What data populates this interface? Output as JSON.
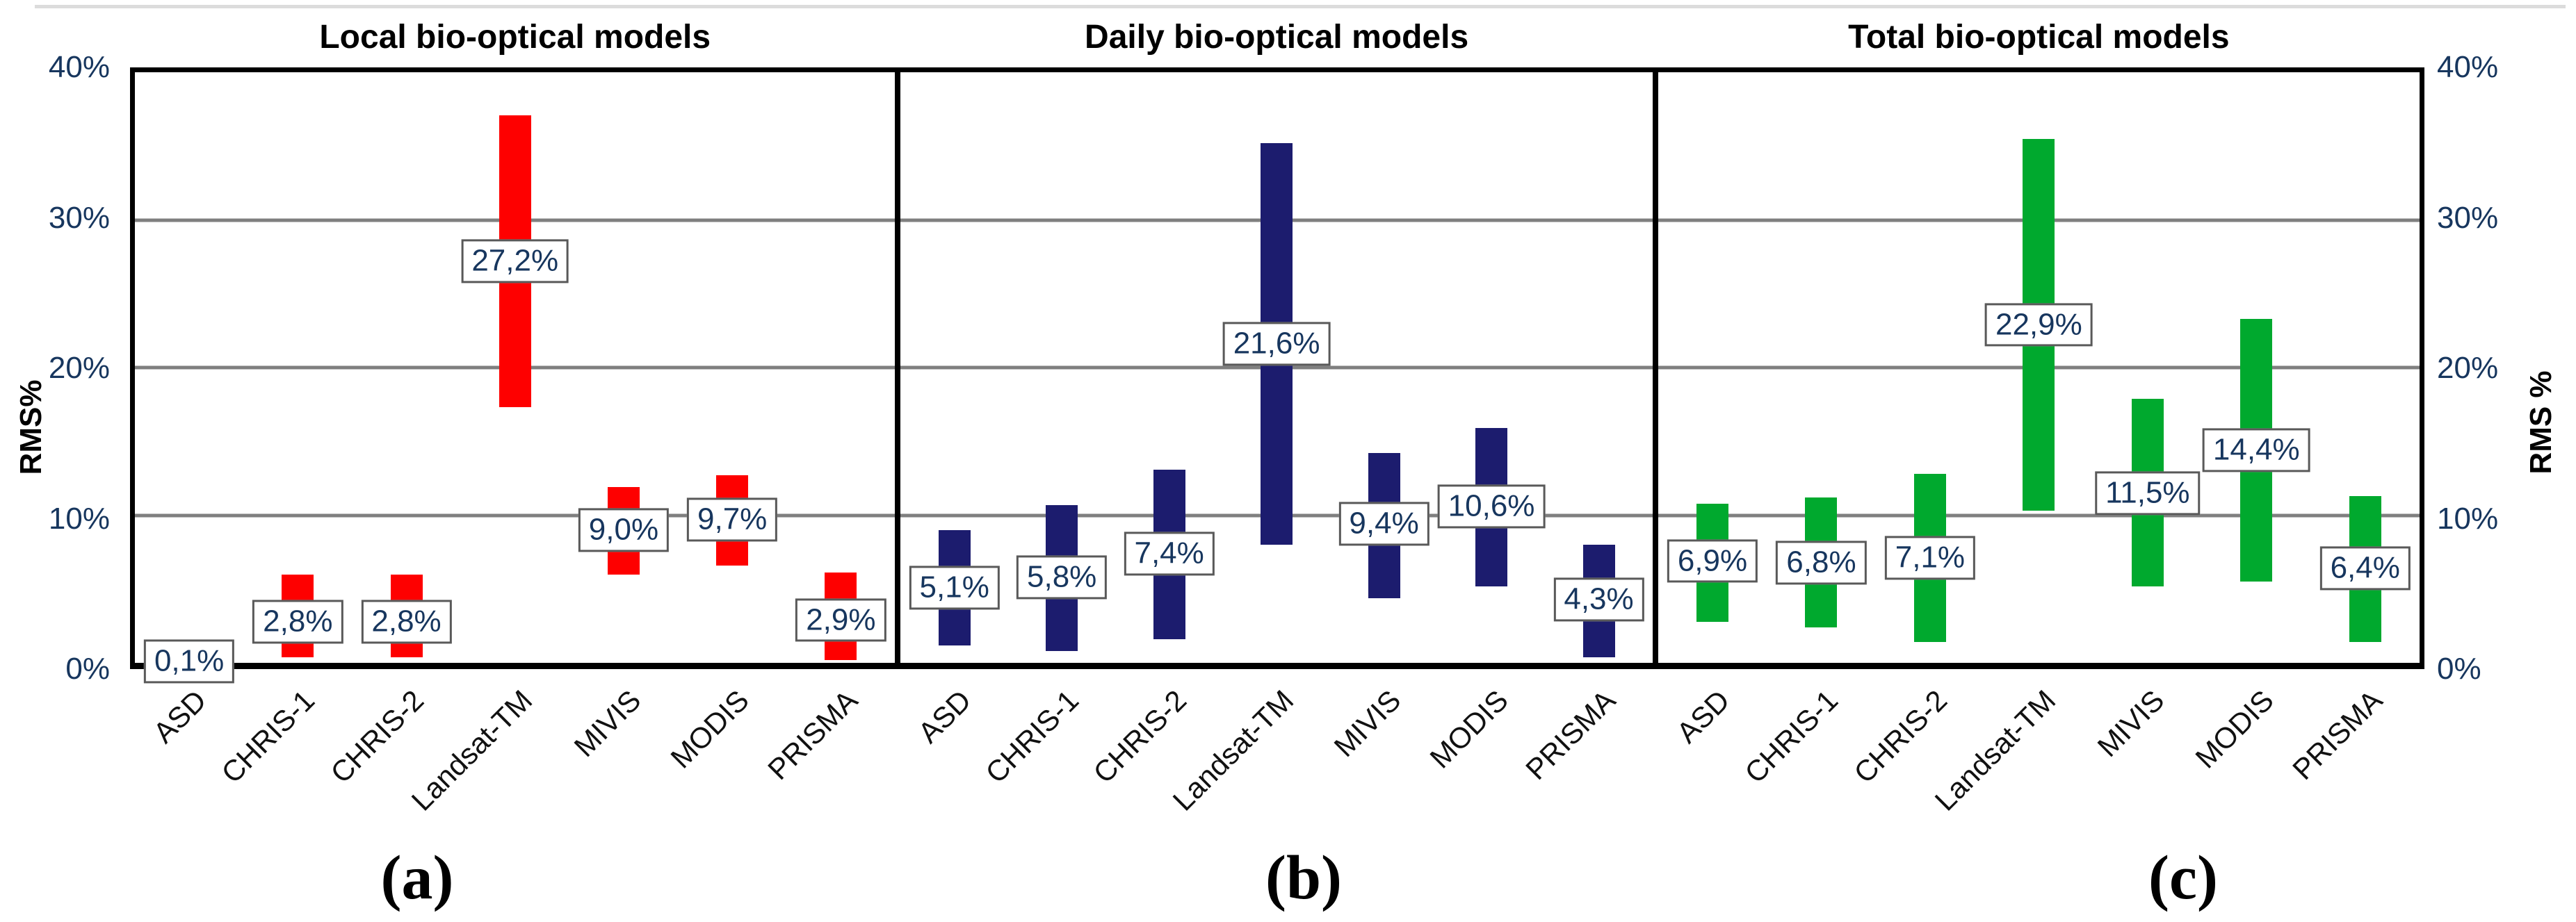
{
  "figure": {
    "left_axis_label": "RMS%",
    "right_axis_label": "RMS %",
    "yticks": [
      {
        "label": "40%",
        "value": 40
      },
      {
        "label": "30%",
        "value": 30
      },
      {
        "label": "20%",
        "value": 20
      },
      {
        "label": "10%",
        "value": 10
      },
      {
        "label": "0%",
        "value": 0
      }
    ],
    "captions": [
      "(a)",
      "(b)",
      "(c)"
    ],
    "grid_color": "#7f7f7f",
    "tick_text_color": "#17365E",
    "label_text_color": "#17365E"
  },
  "chart_data": [
    {
      "type": "bar",
      "variant": "floating-range-bars",
      "title": "Local bio-optical models",
      "caption": "(a)",
      "color": "#FE0000",
      "ylim": [
        0,
        40
      ],
      "grid": true,
      "categories": [
        "ASD",
        "CHRIS-1",
        "CHRIS-2",
        "Landsat-TM",
        "MIVIS",
        "MODIS",
        "PRISMA"
      ],
      "bars": [
        {
          "category": "ASD",
          "label": "0,1%",
          "value": 0.1,
          "range_min": 0.0,
          "range_max": 0.2
        },
        {
          "category": "CHRIS-1",
          "label": "2,8%",
          "value": 2.8,
          "range_min": 0.4,
          "range_max": 6.0
        },
        {
          "category": "CHRIS-2",
          "label": "2,8%",
          "value": 2.8,
          "range_min": 0.4,
          "range_max": 6.0
        },
        {
          "category": "Landsat-TM",
          "label": "27,2%",
          "value": 27.2,
          "range_min": 17.3,
          "range_max": 37.1
        },
        {
          "category": "MIVIS",
          "label": "9,0%",
          "value": 9.0,
          "range_min": 6.0,
          "range_max": 11.9
        },
        {
          "category": "MODIS",
          "label": "9,7%",
          "value": 9.7,
          "range_min": 6.6,
          "range_max": 12.7
        },
        {
          "category": "PRISMA",
          "label": "2,9%",
          "value": 2.9,
          "range_min": 0.2,
          "range_max": 6.1
        }
      ]
    },
    {
      "type": "bar",
      "variant": "floating-range-bars",
      "title": "Daily bio-optical models",
      "caption": "(b)",
      "color": "#1C1C6E",
      "ylim": [
        0,
        40
      ],
      "grid": true,
      "categories": [
        "ASD",
        "CHRIS-1",
        "CHRIS-2",
        "Landsat-TM",
        "MIVIS",
        "MODIS",
        "PRISMA"
      ],
      "bars": [
        {
          "category": "ASD",
          "label": "5,1%",
          "value": 5.1,
          "range_min": 1.2,
          "range_max": 9.0
        },
        {
          "category": "CHRIS-1",
          "label": "5,8%",
          "value": 5.8,
          "range_min": 0.8,
          "range_max": 10.7
        },
        {
          "category": "CHRIS-2",
          "label": "7,4%",
          "value": 7.4,
          "range_min": 1.6,
          "range_max": 13.1
        },
        {
          "category": "Landsat-TM",
          "label": "21,6%",
          "value": 21.6,
          "range_min": 8.0,
          "range_max": 35.2
        },
        {
          "category": "MIVIS",
          "label": "9,4%",
          "value": 9.4,
          "range_min": 4.4,
          "range_max": 14.2
        },
        {
          "category": "MODIS",
          "label": "10,6%",
          "value": 10.6,
          "range_min": 5.2,
          "range_max": 15.9
        },
        {
          "category": "PRISMA",
          "label": "4,3%",
          "value": 4.3,
          "range_min": 0.4,
          "range_max": 8.0
        }
      ]
    },
    {
      "type": "bar",
      "variant": "floating-range-bars",
      "title": "Total bio-optical models",
      "caption": "(c)",
      "color": "#00A92E",
      "ylim": [
        0,
        40
      ],
      "grid": true,
      "categories": [
        "ASD",
        "CHRIS-1",
        "CHRIS-2",
        "Landsat-TM",
        "MIVIS",
        "MODIS",
        "PRISMA"
      ],
      "bars": [
        {
          "category": "ASD",
          "label": "6,9%",
          "value": 6.9,
          "range_min": 2.8,
          "range_max": 10.8
        },
        {
          "category": "CHRIS-1",
          "label": "6,8%",
          "value": 6.8,
          "range_min": 2.4,
          "range_max": 11.2
        },
        {
          "category": "CHRIS-2",
          "label": "7,1%",
          "value": 7.1,
          "range_min": 1.4,
          "range_max": 12.8
        },
        {
          "category": "Landsat-TM",
          "label": "22,9%",
          "value": 22.9,
          "range_min": 10.3,
          "range_max": 35.5
        },
        {
          "category": "MIVIS",
          "label": "11,5%",
          "value": 11.5,
          "range_min": 5.2,
          "range_max": 17.9
        },
        {
          "category": "MODIS",
          "label": "14,4%",
          "value": 14.4,
          "range_min": 5.5,
          "range_max": 23.3
        },
        {
          "category": "PRISMA",
          "label": "6,4%",
          "value": 6.4,
          "range_min": 1.4,
          "range_max": 11.3
        }
      ]
    }
  ]
}
